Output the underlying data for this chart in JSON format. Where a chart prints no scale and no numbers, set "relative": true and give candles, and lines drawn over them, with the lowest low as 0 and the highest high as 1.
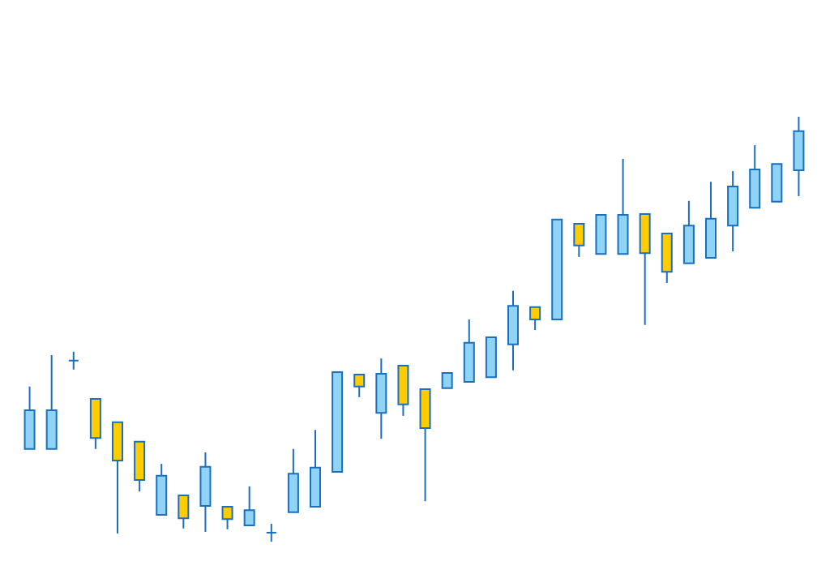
{
  "chart_data": {
    "type": "candlestick",
    "relative": true,
    "categories": [
      null,
      null,
      null,
      null,
      null,
      null,
      null,
      null,
      null,
      null,
      null,
      null,
      null,
      null,
      null,
      null,
      null,
      null,
      null,
      null,
      null,
      null,
      null,
      null,
      null,
      null,
      null,
      null,
      null,
      null,
      null,
      null,
      null,
      null,
      null,
      null
    ],
    "ohlc": [
      [
        0.218,
        0.365,
        0.218,
        0.309
      ],
      [
        0.218,
        0.439,
        0.218,
        0.309
      ],
      [
        0.426,
        0.447,
        0.405,
        0.426
      ],
      [
        0.336,
        0.336,
        0.218,
        0.244
      ],
      [
        0.281,
        0.281,
        0.019,
        0.191
      ],
      [
        0.235,
        0.235,
        0.118,
        0.145
      ],
      [
        0.063,
        0.183,
        0.063,
        0.155
      ],
      [
        0.109,
        0.109,
        0.031,
        0.055
      ],
      [
        0.084,
        0.21,
        0.023,
        0.176
      ],
      [
        0.082,
        0.082,
        0.029,
        0.053
      ],
      [
        0.038,
        0.13,
        0.038,
        0.074
      ],
      [
        0.021,
        0.042,
        0,
        0.021
      ],
      [
        0.069,
        0.218,
        0.069,
        0.16
      ],
      [
        0.082,
        0.263,
        0.082,
        0.174
      ],
      [
        0.164,
        0.399,
        0.164,
        0.399
      ],
      [
        0.393,
        0.393,
        0.34,
        0.365
      ],
      [
        0.303,
        0.431,
        0.242,
        0.395
      ],
      [
        0.414,
        0.414,
        0.296,
        0.323
      ],
      [
        0.359,
        0.359,
        0.095,
        0.267
      ],
      [
        0.361,
        0.397,
        0.361,
        0.397
      ],
      [
        0.376,
        0.523,
        0.376,
        0.468
      ],
      [
        0.387,
        0.481,
        0.387,
        0.481
      ],
      [
        0.464,
        0.59,
        0.403,
        0.555
      ],
      [
        0.552,
        0.552,
        0.498,
        0.523
      ],
      [
        0.523,
        0.758,
        0.523,
        0.758
      ],
      [
        0.748,
        0.748,
        0.67,
        0.697
      ],
      [
        0.677,
        0.769,
        0.677,
        0.769
      ],
      [
        0.677,
        0.901,
        0.677,
        0.769
      ],
      [
        0.771,
        0.771,
        0.51,
        0.679
      ],
      [
        0.725,
        0.725,
        0.609,
        0.635
      ],
      [
        0.655,
        0.802,
        0.655,
        0.744
      ],
      [
        0.668,
        0.847,
        0.668,
        0.76
      ],
      [
        0.744,
        0.872,
        0.683,
        0.836
      ],
      [
        0.786,
        0.933,
        0.786,
        0.876
      ],
      [
        0.8,
        0.889,
        0.8,
        0.889
      ],
      [
        0.874,
        1,
        0.813,
        0.966
      ]
    ],
    "colors": [
      "#8fd3f5",
      "#8fd3f5",
      "#1a6fbf",
      "#ffcc00",
      "#ffcc00",
      "#ffcc00",
      "#8fd3f5",
      "#ffcc00",
      "#8fd3f5",
      "#ffcc00",
      "#8fd3f5",
      "#1a6fbf",
      "#8fd3f5",
      "#8fd3f5",
      "#8fd3f5",
      "#ffcc00",
      "#8fd3f5",
      "#ffcc00",
      "#ffcc00",
      "#8fd3f5",
      "#8fd3f5",
      "#8fd3f5",
      "#8fd3f5",
      "#ffcc00",
      "#8fd3f5",
      "#ffcc00",
      "#8fd3f5",
      "#8fd3f5",
      "#ffcc00",
      "#ffcc00",
      "#8fd3f5",
      "#8fd3f5",
      "#8fd3f5",
      "#8fd3f5",
      "#8fd3f5",
      "#8fd3f5"
    ]
  }
}
